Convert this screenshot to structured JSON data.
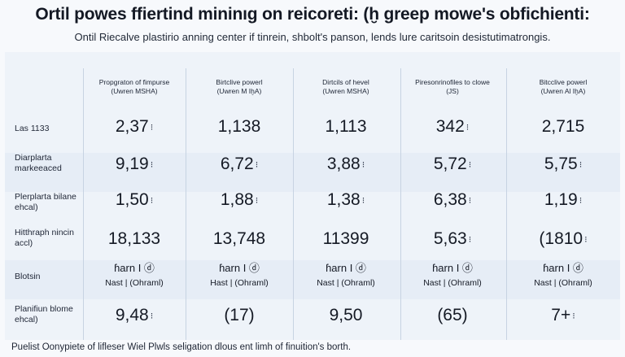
{
  "title": "Ortil powes ffiertind mininıg on reicoreti: (ḫ greep mowe's obfichienti:",
  "subtitle": "Ontil Riecalve plastirio anning center if tinrein, shbolt's panson, lends lure caritsoin desistutimatrongis.",
  "columns": [
    {
      "line1": "Propgraton of fimpurse",
      "line2": "(Uwren MSHA)"
    },
    {
      "line1": "Birtclive powerl",
      "line2": "(Uwren M IḫA)"
    },
    {
      "line1": "Dirtcils of hevel",
      "line2": "(Uwren MSHA)"
    },
    {
      "line1": "Piresonrinofiles to clowe",
      "line2": "(JS)"
    },
    {
      "line1": "Bitcclive powerl",
      "line2": "(Uwren Al IḫA)"
    }
  ],
  "rows": [
    {
      "label": "Las 1133",
      "cells": [
        {
          "value": "2,37",
          "badge": "⁝"
        },
        {
          "value": "1,138",
          "badge": ""
        },
        {
          "value": "1,113",
          "badge": ""
        },
        {
          "value": "342",
          "badge": "⁝"
        },
        {
          "value": "2,715",
          "badge": ""
        }
      ]
    },
    {
      "label": "Diarplarta markeeaced",
      "cells": [
        {
          "value": "9,19",
          "badge": "⁝"
        },
        {
          "value": "6,72",
          "badge": "⁝"
        },
        {
          "value": "3,88",
          "badge": "⁝"
        },
        {
          "value": "5,72",
          "badge": "⁝"
        },
        {
          "value": "5,75",
          "badge": "⁝"
        }
      ]
    },
    {
      "label": "Plerplarta bilane ehcal)",
      "cells": [
        {
          "value": "1,50",
          "badge": "⁝"
        },
        {
          "value": "1,88",
          "badge": "⁝"
        },
        {
          "value": "1,38",
          "badge": "⁝"
        },
        {
          "value": "6,38",
          "badge": "⁝"
        },
        {
          "value": "1,19",
          "badge": "⁝"
        }
      ]
    },
    {
      "label": "Hitthraph nincin accl)",
      "cells": [
        {
          "value": "18,133",
          "badge": ""
        },
        {
          "value": "13,748",
          "badge": ""
        },
        {
          "value": "11399",
          "badge": ""
        },
        {
          "value": "5,63",
          "badge": "⁝"
        },
        {
          "value": "(1810",
          "badge": "⁝"
        }
      ]
    },
    {
      "label": "Blotsin",
      "small": true,
      "cells": [
        {
          "top": "ɦarn I ⓓ",
          "bot": "Nast | (Ohraml)"
        },
        {
          "top": "ɦarn I ⓓ",
          "bot": "Hast | (Ohraml)"
        },
        {
          "top": "ɦarn I ⓓ",
          "bot": "Nast | (Ohraml)"
        },
        {
          "top": "ɦarn I ⓓ",
          "bot": "Nast | (Ohraml)"
        },
        {
          "top": "ɦarn I ⓓ",
          "bot": "Nast | (Ohraml)"
        }
      ]
    },
    {
      "label": "Planifiun blome ehcal)",
      "cells": [
        {
          "value": "9,48",
          "badge": "⁝"
        },
        {
          "value": "(17)",
          "badge": ""
        },
        {
          "value": "9,50",
          "badge": ""
        },
        {
          "value": "(65)",
          "badge": ""
        },
        {
          "value": "7+",
          "badge": "⁝"
        }
      ]
    }
  ],
  "footer": "Puelist Oonypiete of lifleser Wiel Plwls seligation dlous ent limh of finuition's borth."
}
